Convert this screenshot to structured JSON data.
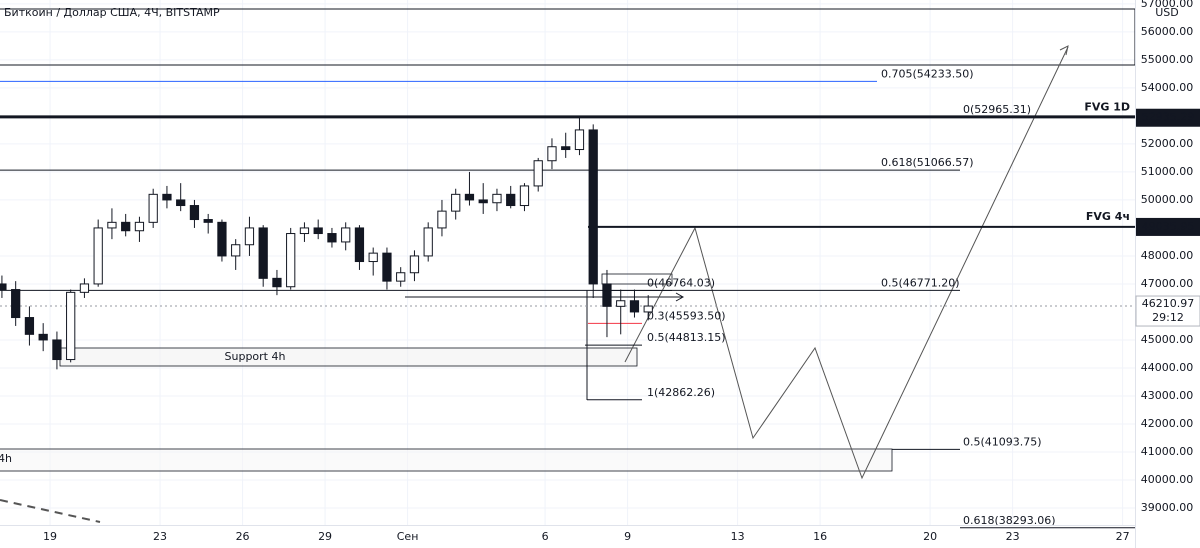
{
  "chart_data": {
    "type": "candlestick",
    "title": "Биткоин / Доллар США, 4Ч, BITSTAMP",
    "currency": "USD",
    "ylim": [
      37570,
      57140
    ],
    "yticks": [
      {
        "value": 57000,
        "label": "57000.00"
      },
      {
        "value": 56000,
        "label": "56000.00"
      },
      {
        "value": 55000,
        "label": "55000.00"
      },
      {
        "value": 54000,
        "label": "54000.00"
      },
      {
        "value": 52000,
        "label": "52000.00"
      },
      {
        "value": 51000,
        "label": "51000.00"
      },
      {
        "value": 50000,
        "label": "50000.00"
      },
      {
        "value": 48000,
        "label": "48000.00"
      },
      {
        "value": 47000,
        "label": "47000.00"
      },
      {
        "value": 45000,
        "label": "45000.00"
      },
      {
        "value": 44000,
        "label": "44000.00"
      },
      {
        "value": 43000,
        "label": "43000.00"
      },
      {
        "value": 42000,
        "label": "42000.00"
      },
      {
        "value": 41000,
        "label": "41000.00"
      },
      {
        "value": 40000,
        "label": "40000.00"
      },
      {
        "value": 39000,
        "label": "39000.00"
      }
    ],
    "xlim": [
      17.18,
      58.45
    ],
    "xticks": [
      {
        "value": 19,
        "label": "19"
      },
      {
        "value": 23,
        "label": "23"
      },
      {
        "value": 26,
        "label": "26"
      },
      {
        "value": 29,
        "label": "29"
      },
      {
        "value": 32,
        "label": "Сен"
      },
      {
        "value": 37,
        "label": "6"
      },
      {
        "value": 40,
        "label": "9"
      },
      {
        "value": 44,
        "label": "13"
      },
      {
        "value": 47,
        "label": "16"
      },
      {
        "value": 51,
        "label": "20"
      },
      {
        "value": 54,
        "label": "23"
      },
      {
        "value": 58,
        "label": "27"
      }
    ],
    "candles": [
      {
        "x": 17.25,
        "open": 47000,
        "high": 47300,
        "low": 46500,
        "close": 46800
      },
      {
        "x": 17.75,
        "open": 46800,
        "high": 47100,
        "low": 45500,
        "close": 45800
      },
      {
        "x": 18.25,
        "open": 45800,
        "high": 46200,
        "low": 44800,
        "close": 45200
      },
      {
        "x": 18.75,
        "open": 45200,
        "high": 45600,
        "low": 44600,
        "close": 45000
      },
      {
        "x": 19.25,
        "open": 45000,
        "high": 45300,
        "low": 43950,
        "close": 44300
      },
      {
        "x": 19.75,
        "open": 44300,
        "high": 46800,
        "low": 44200,
        "close": 46700
      },
      {
        "x": 20.25,
        "open": 46700,
        "high": 47200,
        "low": 46500,
        "close": 47000
      },
      {
        "x": 20.75,
        "open": 47000,
        "high": 49300,
        "low": 46900,
        "close": 49000
      },
      {
        "x": 21.25,
        "open": 49000,
        "high": 49700,
        "low": 48600,
        "close": 49200
      },
      {
        "x": 21.75,
        "open": 49200,
        "high": 49500,
        "low": 48700,
        "close": 48900
      },
      {
        "x": 22.25,
        "open": 48900,
        "high": 49400,
        "low": 48500,
        "close": 49200
      },
      {
        "x": 22.75,
        "open": 49200,
        "high": 50400,
        "low": 49000,
        "close": 50200
      },
      {
        "x": 23.25,
        "open": 50200,
        "high": 50500,
        "low": 49700,
        "close": 50000
      },
      {
        "x": 23.75,
        "open": 50000,
        "high": 50600,
        "low": 49600,
        "close": 49800
      },
      {
        "x": 24.25,
        "open": 49800,
        "high": 50000,
        "low": 49000,
        "close": 49300
      },
      {
        "x": 24.75,
        "open": 49300,
        "high": 49500,
        "low": 48800,
        "close": 49200
      },
      {
        "x": 25.25,
        "open": 49200,
        "high": 49300,
        "low": 47800,
        "close": 48000
      },
      {
        "x": 25.75,
        "open": 48000,
        "high": 48600,
        "low": 47500,
        "close": 48400
      },
      {
        "x": 26.25,
        "open": 48400,
        "high": 49400,
        "low": 48000,
        "close": 49000
      },
      {
        "x": 26.75,
        "open": 49000,
        "high": 49100,
        "low": 46900,
        "close": 47200
      },
      {
        "x": 27.25,
        "open": 47200,
        "high": 47500,
        "low": 46600,
        "close": 46900
      },
      {
        "x": 27.75,
        "open": 46900,
        "high": 49000,
        "low": 46800,
        "close": 48800
      },
      {
        "x": 28.25,
        "open": 48800,
        "high": 49200,
        "low": 48500,
        "close": 49000
      },
      {
        "x": 28.75,
        "open": 49000,
        "high": 49300,
        "low": 48600,
        "close": 48800
      },
      {
        "x": 29.25,
        "open": 48800,
        "high": 49000,
        "low": 48300,
        "close": 48500
      },
      {
        "x": 29.75,
        "open": 48500,
        "high": 49200,
        "low": 48200,
        "close": 49000
      },
      {
        "x": 30.25,
        "open": 49000,
        "high": 49100,
        "low": 47500,
        "close": 47800
      },
      {
        "x": 30.75,
        "open": 47800,
        "high": 48300,
        "low": 47300,
        "close": 48100
      },
      {
        "x": 31.25,
        "open": 48100,
        "high": 48300,
        "low": 46800,
        "close": 47100
      },
      {
        "x": 31.75,
        "open": 47100,
        "high": 47600,
        "low": 46900,
        "close": 47400
      },
      {
        "x": 32.25,
        "open": 47400,
        "high": 48200,
        "low": 47100,
        "close": 48000
      },
      {
        "x": 32.75,
        "open": 48000,
        "high": 49200,
        "low": 47800,
        "close": 49000
      },
      {
        "x": 33.25,
        "open": 49000,
        "high": 50000,
        "low": 48700,
        "close": 49600
      },
      {
        "x": 33.75,
        "open": 49600,
        "high": 50400,
        "low": 49300,
        "close": 50200
      },
      {
        "x": 34.25,
        "open": 50200,
        "high": 51000,
        "low": 49800,
        "close": 50000
      },
      {
        "x": 34.75,
        "open": 50000,
        "high": 50600,
        "low": 49500,
        "close": 49900
      },
      {
        "x": 35.25,
        "open": 49900,
        "high": 50400,
        "low": 49600,
        "close": 50200
      },
      {
        "x": 35.75,
        "open": 50200,
        "high": 50500,
        "low": 49700,
        "close": 49800
      },
      {
        "x": 36.25,
        "open": 49800,
        "high": 50600,
        "low": 49600,
        "close": 50500
      },
      {
        "x": 36.75,
        "open": 50500,
        "high": 51500,
        "low": 50300,
        "close": 51400
      },
      {
        "x": 37.25,
        "open": 51400,
        "high": 52200,
        "low": 51100,
        "close": 51900
      },
      {
        "x": 37.75,
        "open": 51900,
        "high": 52400,
        "low": 51500,
        "close": 51800
      },
      {
        "x": 38.25,
        "open": 51800,
        "high": 52950,
        "low": 51600,
        "close": 52500
      },
      {
        "x": 38.75,
        "open": 52500,
        "high": 52700,
        "low": 46500,
        "close": 47000
      },
      {
        "x": 39.25,
        "open": 47000,
        "high": 47500,
        "low": 45100,
        "close": 46200
      },
      {
        "x": 39.75,
        "open": 46200,
        "high": 46800,
        "low": 45200,
        "close": 46400
      },
      {
        "x": 40.25,
        "open": 46400,
        "high": 46800,
        "low": 45800,
        "close": 46000
      },
      {
        "x": 40.75,
        "open": 46000,
        "high": 46600,
        "low": 45700,
        "close": 46210.97
      }
    ],
    "levels": [
      {
        "label": "0.705(54233.50)",
        "price": 54233.5,
        "color": "#2962ff"
      },
      {
        "label": "0(52965.31)",
        "price": 52965.31
      },
      {
        "label": "0.618(51066.57)",
        "price": 51066.57
      },
      {
        "label": "0.5(46771.20)",
        "price": 46771.2
      },
      {
        "label": "0(46764.03)",
        "price": 46764.03
      },
      {
        "label": "0.3(45593.50)",
        "price": 45593.5,
        "color": "#f23645"
      },
      {
        "label": "0.5(44813.15)",
        "price": 44813.15
      },
      {
        "label": "1(42862.26)",
        "price": 42862.26
      },
      {
        "label": "0.5(41093.75)",
        "price": 41093.75
      },
      {
        "label": "0.618(38293.06)",
        "price": 38293.06
      }
    ],
    "fvg": [
      {
        "label": "FVG 1D",
        "price": 52935.29
      },
      {
        "label": "FVG 4ч",
        "price": 49035.95
      }
    ],
    "zones": [
      {
        "label": "Support 4h"
      },
      {
        "label": "4h"
      }
    ],
    "current": {
      "price": 46210.97,
      "countdown": "29:12"
    }
  }
}
